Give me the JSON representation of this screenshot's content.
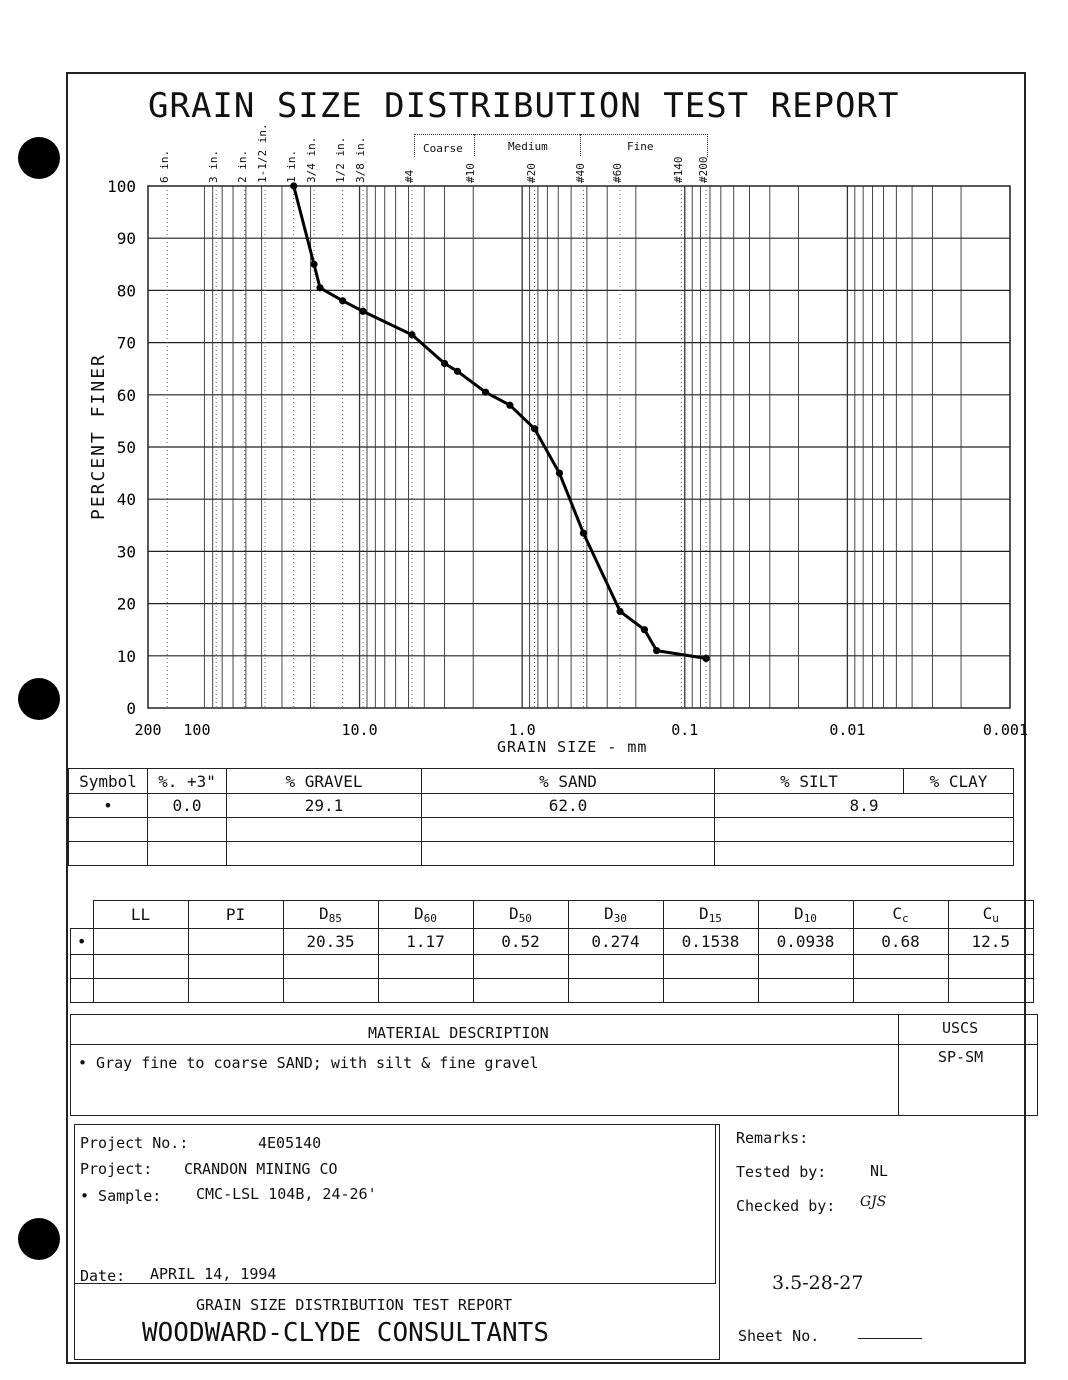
{
  "title": "GRAIN SIZE DISTRIBUTION TEST REPORT",
  "sieve_labels": [
    "6 in.",
    "3 in.",
    "2 in.",
    "1-1/2 in.",
    "1 in.",
    "3/4 in.",
    "1/2 in.",
    "3/8 in.",
    "#4",
    "#10",
    "#20",
    "#40",
    "#60",
    "#140",
    "#200"
  ],
  "sand_zones": [
    "Coarse",
    "Medium",
    "Fine"
  ],
  "chart_data": {
    "type": "line",
    "xlabel": "GRAIN SIZE - mm",
    "ylabel": "PERCENT FINER",
    "x_scale": "log",
    "x_reversed": true,
    "xlim": [
      200,
      0.001
    ],
    "ylim": [
      0,
      100
    ],
    "x_ticks": [
      "200",
      "100",
      "10.0",
      "1.0",
      "0.1",
      "0.01",
      "0.001"
    ],
    "y_ticks": [
      "100",
      "90",
      "80",
      "70",
      "60",
      "50",
      "40",
      "30",
      "20",
      "10",
      "0"
    ],
    "grid": true,
    "series": [
      {
        "x": [
          25.4,
          19.05,
          17.5,
          12.7,
          9.525,
          4.76,
          3.0,
          2.5,
          1.68,
          1.19,
          0.84,
          0.59,
          0.42,
          0.25,
          0.177,
          0.149,
          0.074
        ],
        "y": [
          100,
          85,
          80.5,
          78,
          76,
          71.5,
          66,
          64.5,
          60.5,
          58,
          53.5,
          45,
          33.5,
          18.5,
          15,
          11,
          9.5
        ]
      }
    ]
  },
  "summary_table": {
    "headers": [
      "Symbol",
      "%. +3\"",
      "% GRAVEL",
      "% SAND",
      "% SILT",
      "% CLAY"
    ],
    "row": {
      "symbol": "•",
      "plus3": "0.0",
      "gravel": "29.1",
      "sand": "62.0",
      "silt_clay": "8.9"
    }
  },
  "params_table": {
    "headers": {
      "ll": "LL",
      "pi": "PI",
      "d85": "85",
      "d60": "60",
      "d50": "50",
      "d30": "30",
      "d15": "15",
      "d10": "10",
      "cc": "c",
      "cu": "u"
    },
    "header_letters": {
      "d": "D",
      "c": "C"
    },
    "row": {
      "symbol": "•",
      "ll": "",
      "pi": "",
      "d85": "20.35",
      "d60": "1.17",
      "d50": "0.52",
      "d30": "0.274",
      "d15": "0.1538",
      "d10": "0.0938",
      "cc": "0.68",
      "cu": "12.5"
    }
  },
  "material": {
    "header": "MATERIAL DESCRIPTION",
    "uscs_header": "USCS",
    "description": "•  Gray fine to coarse SAND; with silt & fine gravel",
    "uscs": "SP-SM"
  },
  "project": {
    "number_label": "Project No.:",
    "number": "4E05140",
    "project_label": "Project:",
    "project": "CRANDON MINING CO",
    "sample_label": "•  Sample:",
    "sample": "CMC-LSL 104B, 24-26'",
    "date_label": "Date:",
    "date": "APRIL 14, 1994"
  },
  "remarks": {
    "remarks_label": "Remarks:",
    "tested_label": "Tested by:",
    "tested": "NL",
    "checked_label": "Checked by:",
    "checked": "GJS",
    "handwritten_number": "3.5-28-27",
    "sheet_label": "Sheet No."
  },
  "footer": {
    "report_title": "GRAIN SIZE DISTRIBUTION TEST REPORT",
    "company": "WOODWARD-CLYDE CONSULTANTS"
  }
}
